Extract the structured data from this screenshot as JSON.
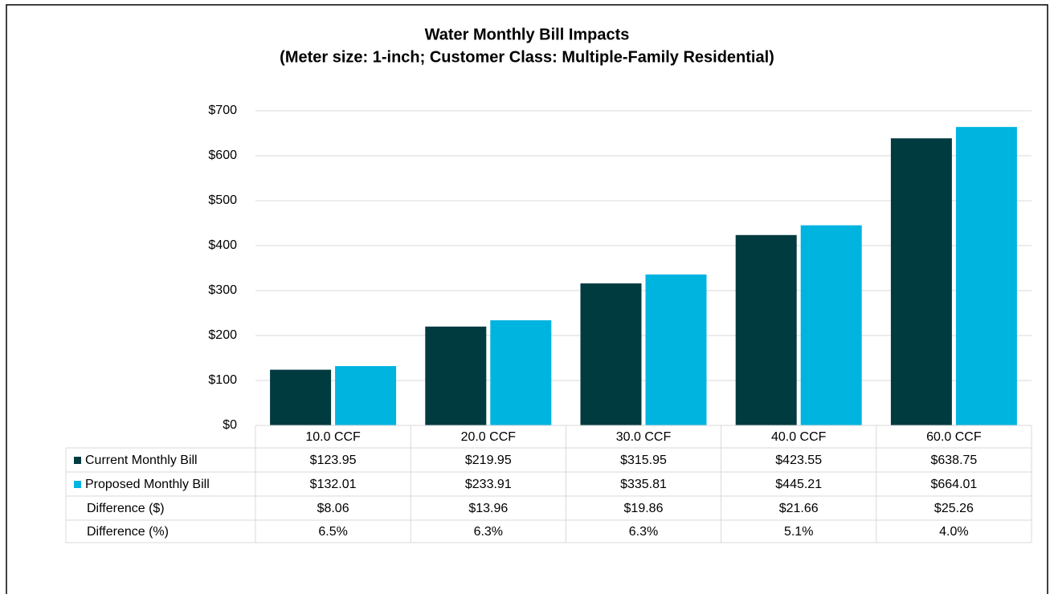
{
  "chart_data": {
    "type": "bar",
    "title": "Water Monthly Bill Impacts",
    "subtitle": "(Meter size: 1-inch; Customer Class: Multiple-Family Residential)",
    "categories": [
      "10.0 CCF",
      "20.0 CCF",
      "30.0 CCF",
      "40.0 CCF",
      "60.0 CCF"
    ],
    "series": [
      {
        "name": "Current Monthly Bill",
        "color": "#003b40",
        "values": [
          123.95,
          219.95,
          315.95,
          423.55,
          638.75
        ],
        "value_labels": [
          "$123.95",
          "$219.95",
          "$315.95",
          "$423.55",
          "$638.75"
        ]
      },
      {
        "name": "Proposed Monthly Bill",
        "color": "#00b4e0",
        "values": [
          132.01,
          233.91,
          335.81,
          445.21,
          664.01
        ],
        "value_labels": [
          "$132.01",
          "$233.91",
          "$335.81",
          "$445.21",
          "$664.01"
        ]
      }
    ],
    "table_rows": [
      {
        "name": "Difference ($)",
        "cells": [
          "$8.06",
          "$13.96",
          "$19.86",
          "$21.66",
          "$25.26"
        ]
      },
      {
        "name": "Difference (%)",
        "cells": [
          "6.5%",
          "6.3%",
          "6.3%",
          "5.1%",
          "4.0%"
        ]
      }
    ],
    "ylim": [
      0,
      700
    ],
    "yticks": [
      {
        "value": 0,
        "label": "$0"
      },
      {
        "value": 100,
        "label": "$100"
      },
      {
        "value": 200,
        "label": "$200"
      },
      {
        "value": 300,
        "label": "$300"
      },
      {
        "value": 400,
        "label": "$400"
      },
      {
        "value": 500,
        "label": "$500"
      },
      {
        "value": 600,
        "label": "$600"
      },
      {
        "value": 700,
        "label": "$700"
      }
    ],
    "grid": true
  }
}
